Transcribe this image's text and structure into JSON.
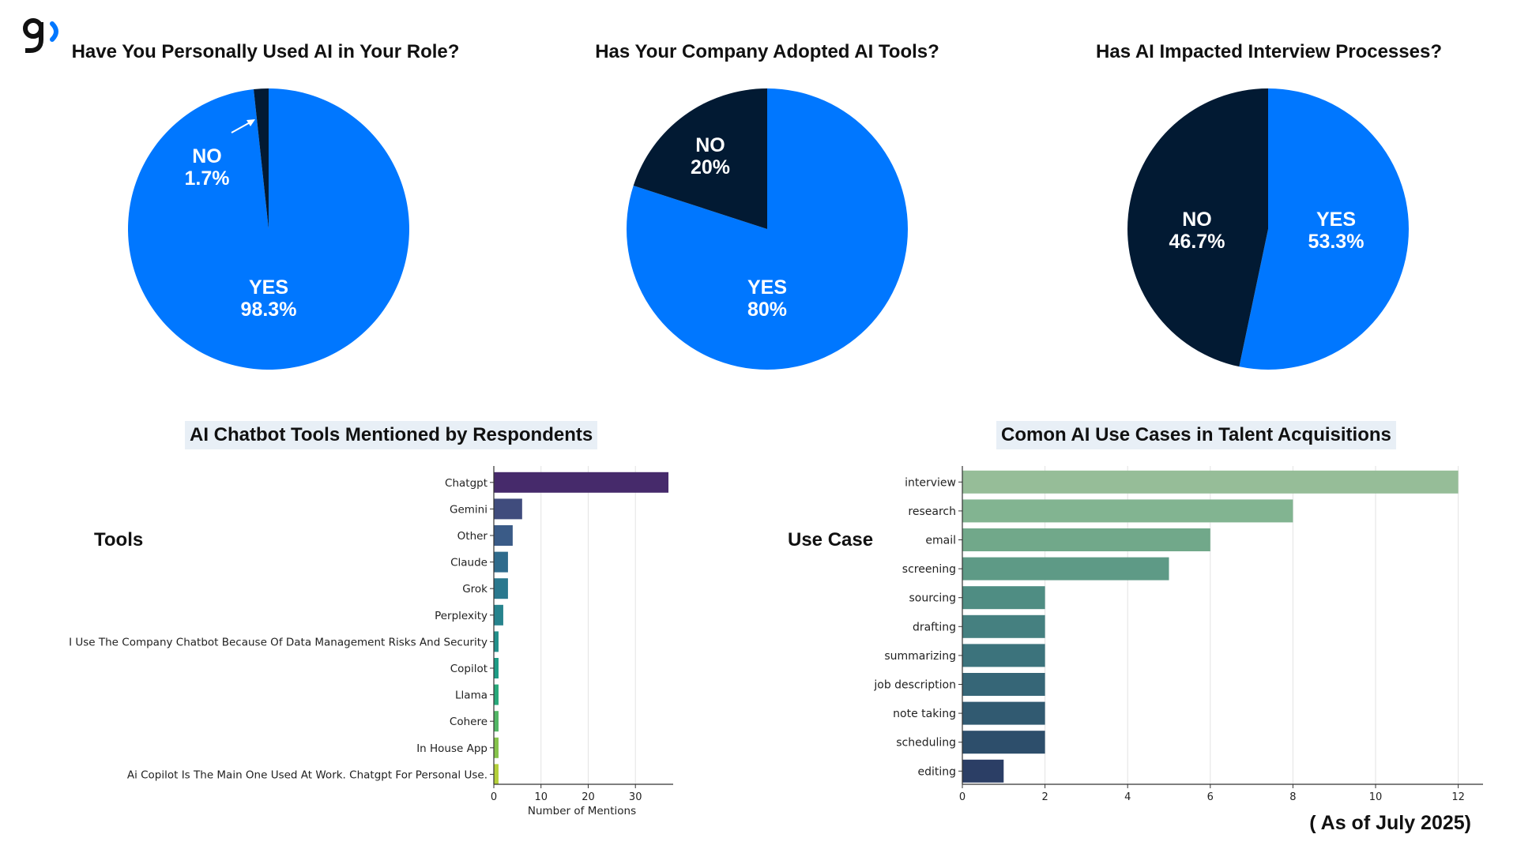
{
  "colors": {
    "blue": "#0077ff",
    "navy": "#021a33"
  },
  "footnote": "( As of July 2025)",
  "chart_data": [
    {
      "type": "pie",
      "title": "Have You Personally Used AI in Your Role?",
      "slices": [
        {
          "label": "YES",
          "value": 98.3,
          "value_label": "98.3%",
          "color": "#0077ff"
        },
        {
          "label": "NO",
          "value": 1.7,
          "value_label": "1.7%",
          "color": "#021a33"
        }
      ]
    },
    {
      "type": "pie",
      "title": "Has Your Company Adopted AI Tools?",
      "slices": [
        {
          "label": "YES",
          "value": 80,
          "value_label": "80%",
          "color": "#0077ff"
        },
        {
          "label": "NO",
          "value": 20,
          "value_label": "20%",
          "color": "#021a33"
        }
      ]
    },
    {
      "type": "pie",
      "title": "Has AI Impacted Interview Processes?",
      "slices": [
        {
          "label": "YES",
          "value": 53.3,
          "value_label": "53.3%",
          "color": "#0077ff"
        },
        {
          "label": "NO",
          "value": 46.7,
          "value_label": "46.7%",
          "color": "#021a33"
        }
      ]
    },
    {
      "type": "bar",
      "orientation": "horizontal",
      "title": "AI Chatbot Tools Mentioned by Respondents",
      "ylabel": "Tools",
      "xlabel": "Number of Mentions",
      "xlim": [
        0,
        38
      ],
      "xticks": [
        0,
        10,
        20,
        30
      ],
      "categories": [
        "Chatgpt",
        "Gemini",
        "Other",
        "Claude",
        "Grok",
        "Perplexity",
        "I Use The Company Chatbot Because Of Data Management Risks And Security",
        "Copilot",
        "Llama",
        "Cohere",
        "In House App",
        "Ai Copilot Is The Main One Used At Work. Chatgpt For Personal Use."
      ],
      "values": [
        37,
        6,
        4,
        3,
        3,
        2,
        1,
        1,
        1,
        1,
        1,
        1
      ],
      "colors": [
        "#462a6b",
        "#404c7d",
        "#3a5b87",
        "#2f6b8c",
        "#2a788e",
        "#27838d",
        "#228f8a",
        "#1e9c85",
        "#28a97a",
        "#52b665",
        "#86c34c",
        "#b4cf3a"
      ]
    },
    {
      "type": "bar",
      "orientation": "horizontal",
      "title": "Comon AI Use Cases in Talent Acquisitions",
      "ylabel": "Use Case",
      "xlabel": "",
      "xlim": [
        0,
        12.6
      ],
      "xticks": [
        0,
        2,
        4,
        6,
        8,
        10,
        12
      ],
      "categories": [
        "interview",
        "research",
        "email",
        "screening",
        "sourcing",
        "drafting",
        "summarizing",
        "job description",
        "note taking",
        "scheduling",
        "editing"
      ],
      "values": [
        12,
        8,
        6,
        5,
        2,
        2,
        2,
        2,
        2,
        2,
        1
      ],
      "colors": [
        "#96bd98",
        "#82b491",
        "#71a88a",
        "#5e9a86",
        "#4f8d83",
        "#458080",
        "#3c737c",
        "#366677",
        "#315a71",
        "#2d4e6b",
        "#2b3e65"
      ]
    }
  ]
}
